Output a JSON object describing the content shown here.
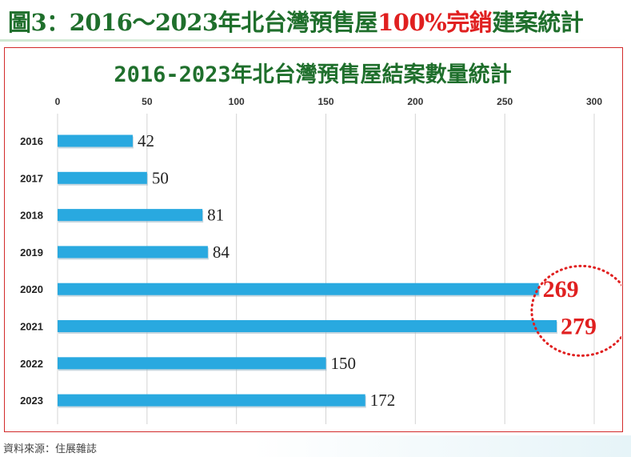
{
  "heading": {
    "prefix": "圖3：2016～2023年北台灣預售屋",
    "highlight": "100%完銷",
    "suffix": "建案統計"
  },
  "source_text": "資料來源：住展雜誌",
  "colors": {
    "heading_green": "#1f6f2c",
    "highlight_red": "#e02020",
    "bar_blue": "#29a9e0",
    "frame_red": "#d22a2a"
  },
  "chart_data": {
    "type": "bar",
    "orientation": "horizontal",
    "title": "2016-2023年北台灣預售屋結案數量統計",
    "xlabel": "",
    "ylabel": "",
    "categories": [
      "2016",
      "2017",
      "2018",
      "2019",
      "2020",
      "2021",
      "2022",
      "2023"
    ],
    "values": [
      42,
      50,
      81,
      84,
      269,
      279,
      150,
      172
    ],
    "xlim": [
      0,
      300
    ],
    "x_ticks": [
      "0",
      "50",
      "100",
      "150",
      "200",
      "250",
      "300"
    ],
    "x_axis_position": "top",
    "grid": true,
    "highlighted": [
      "2020",
      "2021"
    ],
    "highlight_style": "red dotted circle"
  }
}
